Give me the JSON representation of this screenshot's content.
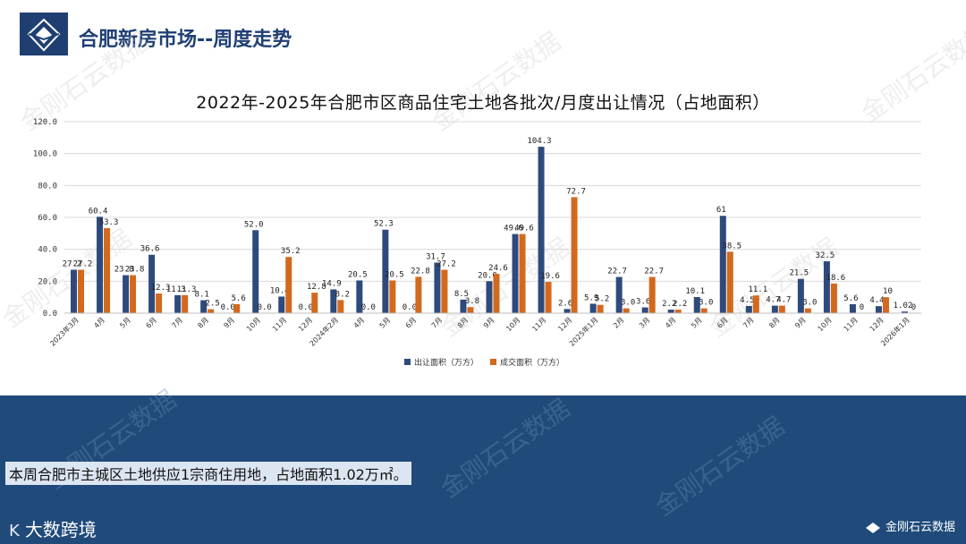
{
  "header": {
    "title": "合肥新房市场--周度走势"
  },
  "watermark": "金刚石云数据",
  "summary": "本周合肥市主城区土地供应1宗商住用地，占地面积1.02万㎡。",
  "brand_left": "大数跨境",
  "brand_left_mark": "K",
  "brand_right": "金刚石云数据",
  "colors": {
    "series1": "#2e4a7d",
    "series2": "#d2691e",
    "band": "#1f4a7a"
  },
  "chart_data": {
    "type": "bar",
    "title": "2022年-2025年合肥市区商品住宅土地各批次/月度出让情况（占地面积）",
    "ylim": [
      0,
      120
    ],
    "yticks": [
      "0.0",
      "20.0",
      "40.0",
      "60.0",
      "80.0",
      "100.0",
      "120.0"
    ],
    "legend_position": "bottom",
    "categories": [
      "2023年3月",
      "4月",
      "5月",
      "6月",
      "7月",
      "8月",
      "9月",
      "10月",
      "11月",
      "12月",
      "2024年2月",
      "4月",
      "5月",
      "6月",
      "7月",
      "8月",
      "9月",
      "10月",
      "11月",
      "12月",
      "2025年1月",
      "2月",
      "3月",
      "4月",
      "5月",
      "6月",
      "7月",
      "8月",
      "9月",
      "10月",
      "11月",
      "12月",
      "2026年1月"
    ],
    "series": [
      {
        "name": "出让面积（万方）",
        "values": [
          27.2,
          60.4,
          23.8,
          36.6,
          11.3,
          8.1,
          0.0,
          52.0,
          10.4,
          0.0,
          14.9,
          20.5,
          52.3,
          0.0,
          31.7,
          8.5,
          20.0,
          49.6,
          104.3,
          2.6,
          5.9,
          22.7,
          3.6,
          2.2,
          10.1,
          61,
          4.5,
          4.7,
          21.5,
          32.5,
          5.6,
          4.4,
          1.02
        ],
        "labels": [
          "27.2",
          "60.4",
          "23.8",
          "36.6",
          "11.3",
          "8.1",
          "0.0",
          "52.0",
          "10.4",
          "0.0",
          "14.9",
          "20.5",
          "52.3",
          "0.0",
          "31.7",
          "8.5",
          "20.0",
          "49.6",
          "104.3",
          "2.6",
          "5.9",
          "22.7",
          "3.6",
          "2.2",
          "10.1",
          "61",
          "4.5",
          "4.7",
          "21.5",
          "32.5",
          "5.6",
          "4.4",
          "1.02"
        ]
      },
      {
        "name": "成交面积（万方）",
        "values": [
          27.2,
          53.3,
          23.8,
          12.3,
          11.3,
          2.5,
          5.6,
          0.0,
          35.2,
          12.8,
          8.2,
          0.0,
          20.5,
          22.8,
          27.2,
          3.8,
          24.6,
          49.6,
          19.6,
          72.7,
          5.2,
          3.0,
          22.7,
          2.2,
          3.0,
          38.5,
          11.1,
          4.7,
          3.0,
          18.6,
          0,
          10,
          0
        ],
        "labels": [
          "27.2",
          "53.3",
          "23.8",
          "12.3",
          "11.3",
          "2.5",
          "5.6",
          "0.0",
          "35.2",
          "12.8",
          "8.2",
          "0.0",
          "20.5",
          "22.8",
          "27.2",
          "3.8",
          "24.6",
          "49.6",
          "19.6",
          "72.7",
          "5.2",
          "3.0",
          "22.7",
          "2.2",
          "3.0",
          "38.5",
          "11.1",
          "4.7",
          "3.0",
          "18.6",
          "0",
          "10",
          "0"
        ]
      }
    ]
  }
}
